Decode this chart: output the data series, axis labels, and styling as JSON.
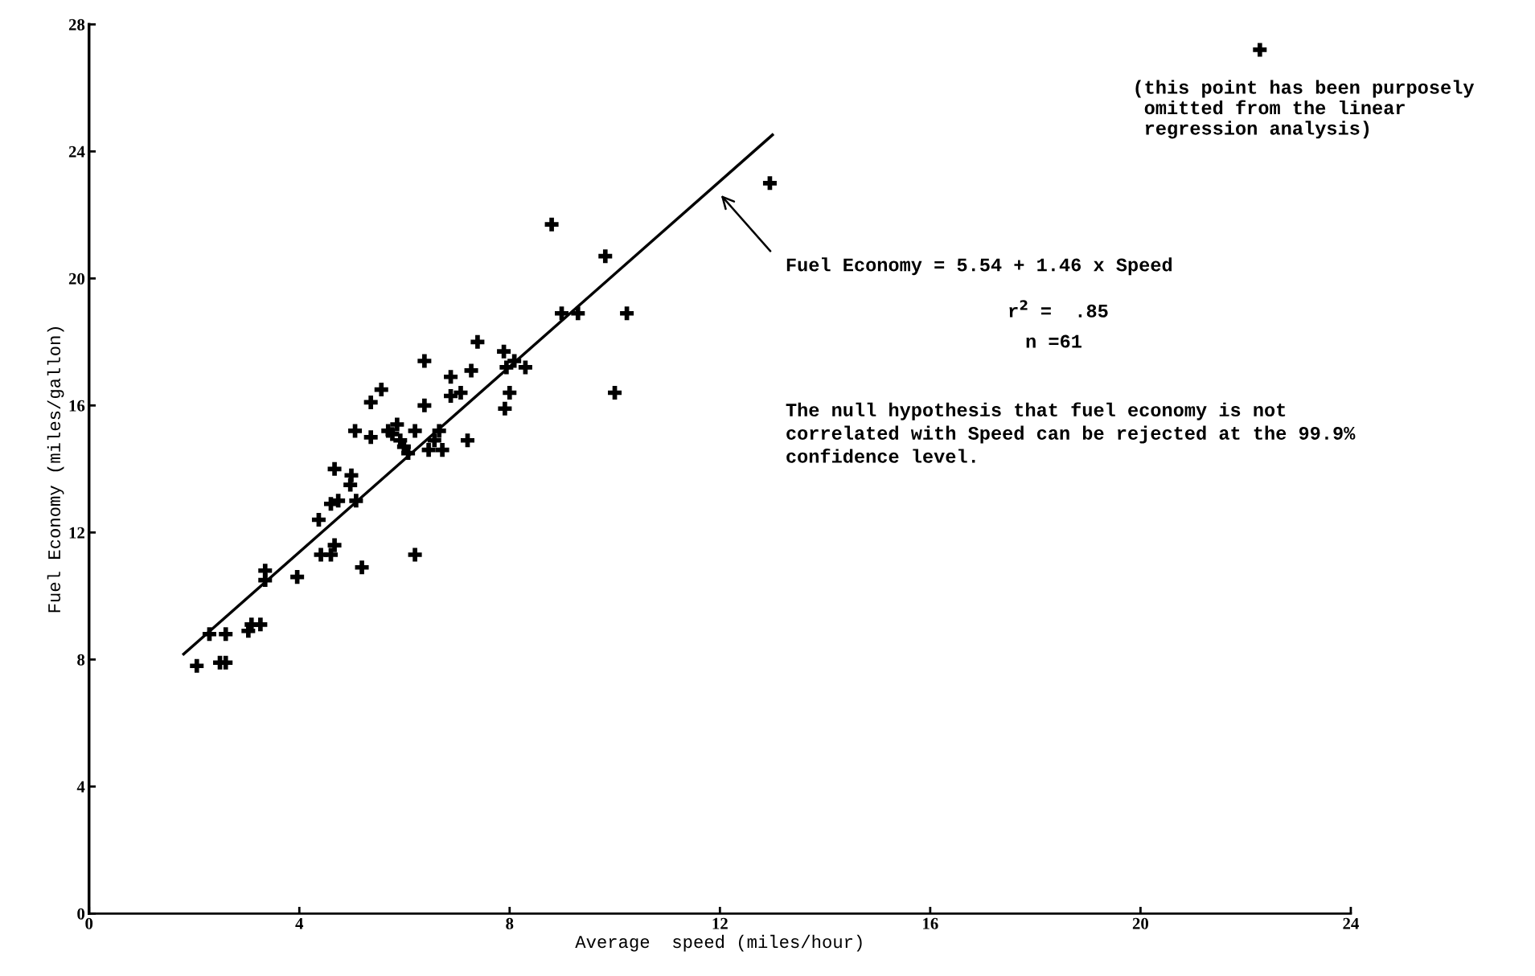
{
  "chart_data": {
    "type": "scatter",
    "xlabel": "Average  speed (miles/hour)",
    "ylabel": "Fuel Economy (miles/gallon)",
    "xlim": [
      0,
      24
    ],
    "xticks": [
      0,
      4,
      8,
      12,
      16,
      20,
      24
    ],
    "ylim": [
      0,
      28
    ],
    "yticks": [
      0,
      4,
      8,
      12,
      16,
      20,
      24,
      28
    ],
    "grid": false,
    "legend": false,
    "series": [
      {
        "color": "#000000",
        "marker": "cross",
        "x": [
          2.05,
          2.49,
          2.6,
          2.29,
          2.6,
          3.03,
          3.09,
          3.26,
          3.35,
          3.35,
          3.96,
          4.37,
          4.41,
          4.6,
          4.67,
          4.6,
          4.74,
          4.67,
          4.99,
          4.97,
          5.08,
          5.19,
          5.06,
          5.36,
          5.56,
          5.36,
          5.69,
          5.77,
          5.86,
          5.92,
          5.99,
          6.07,
          6.2,
          6.2,
          6.38,
          6.38,
          6.46,
          6.57,
          6.66,
          6.72,
          6.88,
          6.88,
          7.07,
          7.2,
          7.27,
          7.39,
          7.89,
          7.94,
          8.09,
          8.3,
          7.91,
          8.0,
          8.8,
          8.99,
          9.3,
          9.82,
          10.0,
          10.23,
          12.95,
          22.27
        ],
        "values": [
          7.8,
          7.9,
          7.9,
          8.8,
          8.8,
          8.9,
          9.1,
          9.1,
          10.8,
          10.5,
          10.6,
          12.4,
          11.3,
          11.3,
          11.6,
          12.9,
          13.0,
          14.0,
          13.8,
          13.5,
          13.0,
          10.9,
          15.2,
          16.1,
          16.5,
          15.0,
          15.2,
          15.1,
          15.4,
          14.9,
          14.7,
          14.5,
          11.3,
          15.2,
          17.4,
          16.0,
          14.6,
          14.9,
          15.2,
          14.6,
          16.9,
          16.3,
          16.4,
          14.9,
          17.1,
          18.0,
          17.7,
          17.2,
          17.4,
          17.2,
          15.9,
          16.4,
          21.7,
          18.9,
          18.9,
          20.7,
          16.4,
          18.9,
          23.0,
          27.2
        ]
      },
      {
        "type": "line",
        "color": "#000000",
        "x": [
          1.8,
          13.0
        ],
        "values": [
          8.17,
          24.52
        ]
      }
    ],
    "annotations": [
      {
        "text": "(this point has been purposely\n omitted from the linear\n regression analysis)",
        "x": 22.27,
        "y": 27.2
      },
      "Fuel Economy = 5.54 + 1.46 x Speed",
      "r$^{2}$ =  .85",
      "n =61",
      "The null hypothesis that fuel economy is not\ncorrelated with Speed can be rejected at the 99.9%\nconfidence level."
    ]
  }
}
